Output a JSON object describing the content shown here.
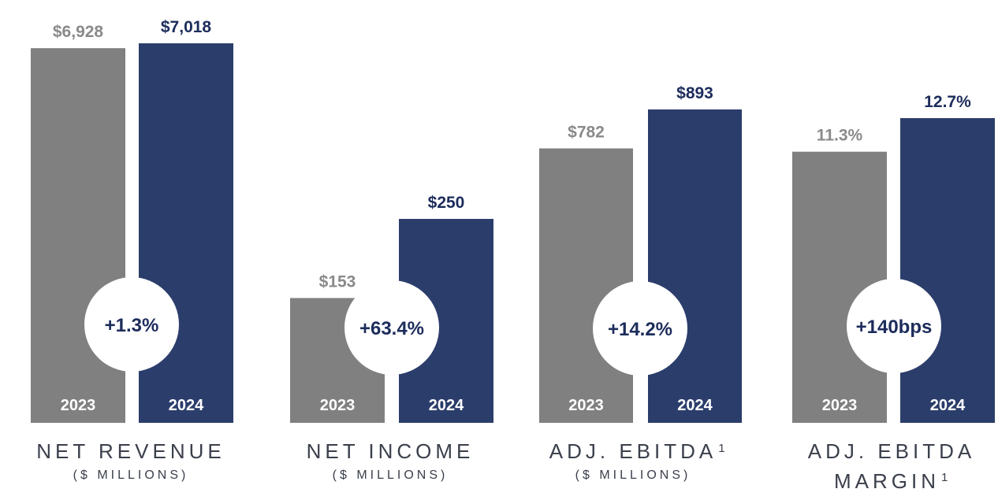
{
  "colors": {
    "prior": "#808080",
    "current": "#2b3d6b",
    "current_label": "#1c2c5b",
    "prior_label": "#8a8a8a"
  },
  "chart_data": [
    {
      "type": "bar",
      "title": "NET REVENUE",
      "subtitle": "($ MILLIONS)",
      "categories": [
        "2023",
        "2024"
      ],
      "values": [
        6928,
        7018
      ],
      "value_labels": [
        "$6,928",
        "$7,018"
      ],
      "change_label": "+1.3%"
    },
    {
      "type": "bar",
      "title": "NET INCOME",
      "subtitle": "($ MILLIONS)",
      "categories": [
        "2023",
        "2024"
      ],
      "values": [
        153,
        250
      ],
      "value_labels": [
        "$153",
        "$250"
      ],
      "change_label": "+63.4%"
    },
    {
      "type": "bar",
      "title": "ADJ. EBITDA",
      "title_superscript": "1",
      "subtitle": "($ MILLIONS)",
      "categories": [
        "2023",
        "2024"
      ],
      "values": [
        782,
        893
      ],
      "value_labels": [
        "$782",
        "$893"
      ],
      "change_label": "+14.2%"
    },
    {
      "type": "bar",
      "title": "ADJ. EBITDA",
      "title_line2": "MARGIN",
      "title_superscript": "1",
      "categories": [
        "2023",
        "2024"
      ],
      "values": [
        11.3,
        12.7
      ],
      "value_labels": [
        "11.3%",
        "12.7%"
      ],
      "change_label": "+140bps"
    }
  ]
}
